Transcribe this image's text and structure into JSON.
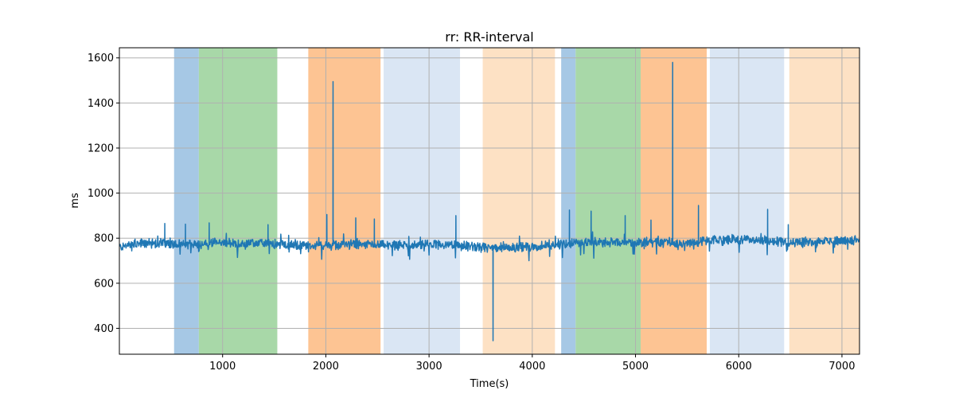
{
  "chart_data": {
    "type": "line",
    "title": "rr: RR-interval",
    "xlabel": "Time(s)",
    "ylabel": "ms",
    "xlim": [
      0,
      7170
    ],
    "ylim": [
      285,
      1645
    ],
    "x_ticks": [
      1000,
      2000,
      3000,
      4000,
      5000,
      6000,
      7000
    ],
    "y_ticks": [
      400,
      600,
      800,
      1000,
      1200,
      1400,
      1600
    ],
    "grid": true,
    "shaded_regions": [
      {
        "x0": 530,
        "x1": 770,
        "color": "#a6c8e5"
      },
      {
        "x0": 770,
        "x1": 1530,
        "color": "#a8d8a8"
      },
      {
        "x0": 1830,
        "x1": 2530,
        "color": "#fdc493"
      },
      {
        "x0": 2560,
        "x1": 3300,
        "color": "#dae6f4"
      },
      {
        "x0": 3520,
        "x1": 4220,
        "color": "#fde1c4"
      },
      {
        "x0": 4280,
        "x1": 4420,
        "color": "#a6c8e5"
      },
      {
        "x0": 4420,
        "x1": 5050,
        "color": "#a8d8a8"
      },
      {
        "x0": 5050,
        "x1": 5690,
        "color": "#fdc493"
      },
      {
        "x0": 5720,
        "x1": 6440,
        "color": "#dae6f4"
      },
      {
        "x0": 6490,
        "x1": 7170,
        "color": "#fde1c4"
      }
    ],
    "series": [
      {
        "color": "#1f77b4",
        "baseline": [
          [
            0,
            760
          ],
          [
            200,
            775
          ],
          [
            400,
            780
          ],
          [
            600,
            770
          ],
          [
            800,
            775
          ],
          [
            1000,
            780
          ],
          [
            1200,
            772
          ],
          [
            1400,
            778
          ],
          [
            1600,
            770
          ],
          [
            1800,
            765
          ],
          [
            2000,
            768
          ],
          [
            2200,
            772
          ],
          [
            2400,
            770
          ],
          [
            2600,
            768
          ],
          [
            2800,
            768
          ],
          [
            3000,
            772
          ],
          [
            3200,
            770
          ],
          [
            3400,
            762
          ],
          [
            3600,
            755
          ],
          [
            3800,
            760
          ],
          [
            4000,
            762
          ],
          [
            4200,
            770
          ],
          [
            4400,
            778
          ],
          [
            4600,
            782
          ],
          [
            4800,
            780
          ],
          [
            5000,
            780
          ],
          [
            5200,
            782
          ],
          [
            5400,
            780
          ],
          [
            5600,
            782
          ],
          [
            5800,
            790
          ],
          [
            6000,
            795
          ],
          [
            6200,
            792
          ],
          [
            6400,
            785
          ],
          [
            6600,
            780
          ],
          [
            6800,
            785
          ],
          [
            7000,
            790
          ],
          [
            7170,
            790
          ]
        ],
        "spikes": [
          [
            440,
            865
          ],
          [
            640,
            862
          ],
          [
            870,
            868
          ],
          [
            1440,
            860
          ],
          [
            2010,
            905
          ],
          [
            2070,
            1495
          ],
          [
            2290,
            890
          ],
          [
            2470,
            885
          ],
          [
            3260,
            900
          ],
          [
            3620,
            345
          ],
          [
            4360,
            925
          ],
          [
            4570,
            920
          ],
          [
            4900,
            900
          ],
          [
            5150,
            880
          ],
          [
            5360,
            1580
          ],
          [
            5610,
            945
          ],
          [
            6280,
            928
          ],
          [
            6480,
            860
          ]
        ]
      }
    ]
  }
}
